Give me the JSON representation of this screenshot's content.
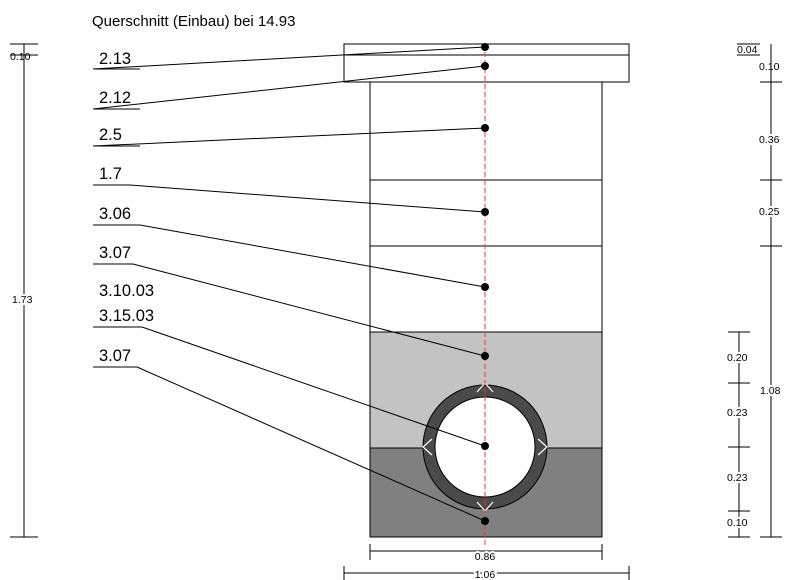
{
  "title": "Querschnitt (Einbau) bei 14.93",
  "layers": [
    {
      "label": "2.13"
    },
    {
      "label": "2.12"
    },
    {
      "label": "2.5"
    },
    {
      "label": "1.7"
    },
    {
      "label": "3.06"
    },
    {
      "label": "3.07"
    },
    {
      "label": "3.10.03"
    },
    {
      "label": "3.15.03"
    },
    {
      "label": "3.07"
    }
  ],
  "dimensions": {
    "left_top": "0.10",
    "left_total": "1.73",
    "right_layers": [
      "0.04",
      "0.10",
      "0.36",
      "0.25"
    ],
    "right_lower": [
      "0.20",
      "0.23",
      "0.23",
      "0.10"
    ],
    "right_total": "1.08",
    "bottom_inner": "0.86",
    "bottom_outer": "1.06"
  },
  "colors": {
    "line": "#000000",
    "axis": "#e53935",
    "upper_fill": "#c3c3c3",
    "lower_fill": "#808080",
    "pipe_ring": "#4a4a4a"
  }
}
